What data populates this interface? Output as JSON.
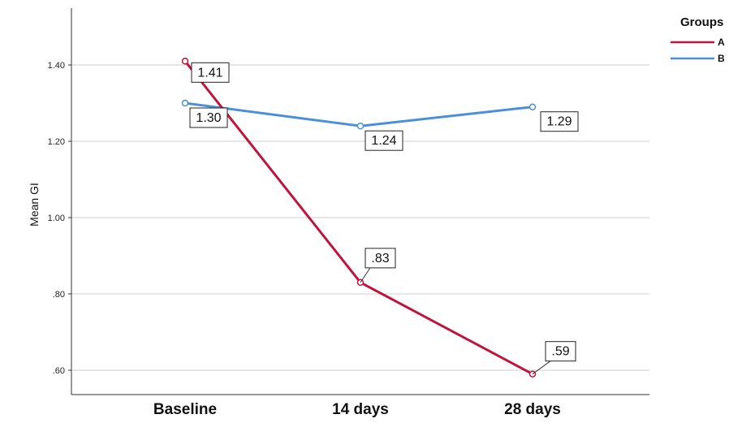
{
  "chart_data": {
    "type": "line",
    "title": "",
    "xlabel": "",
    "ylabel": "Mean GI",
    "categories": [
      "Baseline",
      "14 days",
      "28 days"
    ],
    "ylim": [
      0.57,
      1.57
    ],
    "yticks": [
      0.6,
      0.8,
      1.0,
      1.2,
      1.4
    ],
    "ytick_labels": [
      ".60",
      ".80",
      "1.00",
      "1.20",
      "1.40"
    ],
    "grid": true,
    "legend": {
      "title": "Groups",
      "position": "top-right"
    },
    "series": [
      {
        "name": "A",
        "color": "#c0143c",
        "values": [
          1.41,
          0.83,
          0.59
        ],
        "data_labels": [
          "1.41",
          ".83",
          ".59"
        ]
      },
      {
        "name": "B",
        "color": "#4a90d9",
        "values": [
          1.3,
          1.24,
          1.29
        ],
        "data_labels": [
          "1.30",
          "1.24",
          "1.29"
        ]
      }
    ]
  }
}
